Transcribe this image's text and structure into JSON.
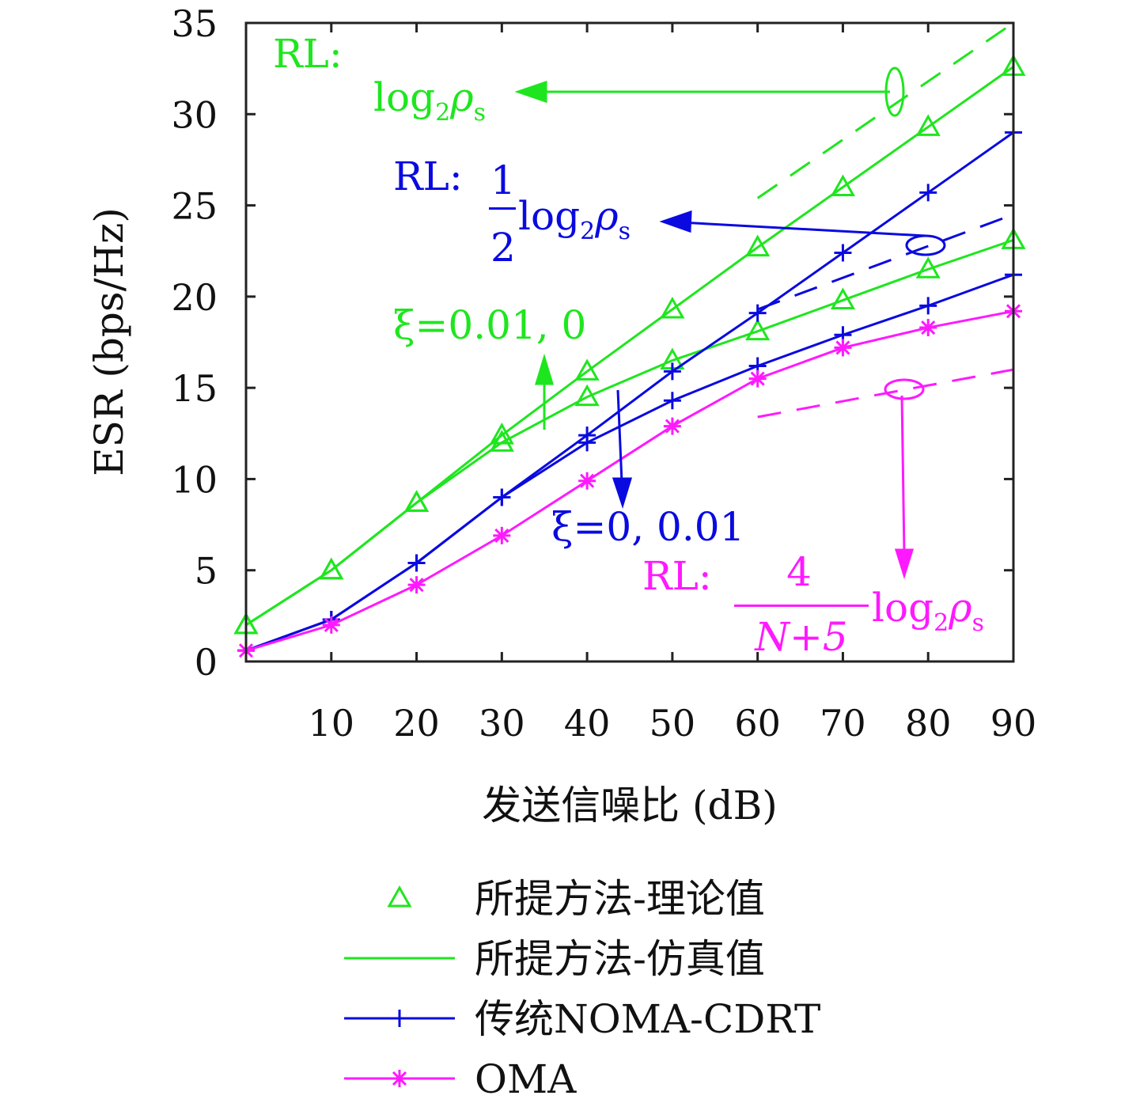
{
  "chart_data": {
    "type": "line",
    "xlabel": "发送信噪比 (dB)",
    "ylabel": "ESR (bps/Hz)",
    "xlim": [
      0,
      90
    ],
    "ylim": [
      0,
      35
    ],
    "xticks": [
      10,
      20,
      30,
      40,
      50,
      60,
      70,
      80,
      90
    ],
    "yticks": [
      0,
      5,
      10,
      15,
      20,
      25,
      30,
      35
    ],
    "grid": false,
    "x": [
      0,
      10,
      20,
      30,
      40,
      50,
      60,
      70,
      80,
      90
    ],
    "series": [
      {
        "name": "所提方法-理论值 / 仿真值 (ξ=0.01)",
        "color": "#1ee61e",
        "marker": "triangle",
        "values": [
          2.0,
          5.0,
          8.7,
          12.4,
          15.9,
          19.3,
          22.7,
          26.0,
          29.3,
          32.6
        ]
      },
      {
        "name": "所提方法-理论值 / 仿真值 (ξ=0)",
        "color": "#1ee61e",
        "marker": "triangle",
        "values": [
          2.0,
          5.0,
          8.7,
          12.0,
          14.5,
          16.5,
          18.1,
          19.8,
          21.5,
          23.1
        ]
      },
      {
        "name": "传统NOMA-CDRT (ξ=0)",
        "color": "#0a0ae0",
        "marker": "plus",
        "values": [
          0.6,
          2.3,
          5.4,
          9.0,
          12.4,
          15.9,
          19.1,
          22.4,
          25.7,
          29.0
        ]
      },
      {
        "name": "传统NOMA-CDRT (ξ=0.01)",
        "color": "#0a0ae0",
        "marker": "plus",
        "values": [
          0.6,
          2.3,
          5.4,
          9.0,
          12.0,
          14.3,
          16.2,
          17.9,
          19.5,
          21.2
        ]
      },
      {
        "name": "OMA",
        "color": "#ff19ff",
        "marker": "star",
        "values": [
          0.6,
          2.0,
          4.2,
          6.9,
          9.9,
          12.9,
          15.5,
          17.2,
          18.3,
          19.2
        ]
      }
    ],
    "asymptotes": [
      {
        "color": "#1ee61e",
        "x": [
          60,
          90
        ],
        "values": [
          25.4,
          35.4
        ]
      },
      {
        "color": "#0a0ae0",
        "x": [
          60,
          90
        ],
        "values": [
          19.3,
          24.5
        ]
      },
      {
        "color": "#ff19ff",
        "x": [
          60,
          90
        ],
        "values": [
          13.4,
          16.0
        ]
      }
    ],
    "annotations": {
      "green_rl": "RL:",
      "green_log": "log",
      "green_sub2": "2",
      "green_rho": "ρ",
      "green_subs": "s",
      "blue_rl": "RL:",
      "blue_num": "1",
      "blue_den": "2",
      "blue_log": "log",
      "blue_sub2": "2",
      "blue_rho": "ρ",
      "blue_subs": "s",
      "green_xi": "ξ=0.01, 0",
      "blue_xi": "ξ=0, 0.01",
      "pink_rl": "RL:",
      "pink_num": "4",
      "pink_den": "N+5",
      "pink_log": "log",
      "pink_sub2": "2",
      "pink_rho": "ρ",
      "pink_subs": "s"
    },
    "legend": {
      "position": "bottom",
      "items": [
        {
          "label": "所提方法-理论值",
          "color": "#1ee61e",
          "marker": "triangle",
          "line": false
        },
        {
          "label": "所提方法-仿真值",
          "color": "#1ee61e",
          "marker": "none",
          "line": true
        },
        {
          "label": "传统NOMA-CDRT",
          "color": "#0a0ae0",
          "marker": "plus",
          "line": true
        },
        {
          "label": "OMA",
          "color": "#ff19ff",
          "marker": "star",
          "line": true
        }
      ]
    }
  }
}
